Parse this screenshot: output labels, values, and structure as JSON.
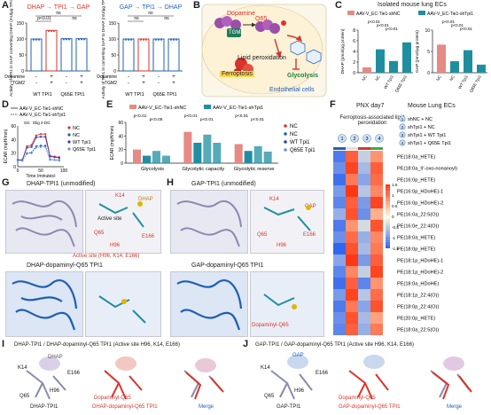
{
  "panels": {
    "A": {
      "letter": "A",
      "chart_data": [
        {
          "type": "bar",
          "title": "DHAP → TPI1 → GAP",
          "ylabel": "Activity of TPI1 in GAP converting DHAP (mU/µg TPI1)",
          "categories": [
            "WT TPI1",
            "WT TPI1 + Dopamine + TGM2",
            "Q65E TPI1",
            "Q65E TPI1 + Dopamine + TGM2"
          ],
          "values": [
            100,
            127,
            101,
            101
          ],
          "ylim": [
            0,
            150
          ],
          "yticks": [
            0,
            50,
            100,
            150
          ],
          "annotations": [
            "p<0.01",
            "ns",
            "ns"
          ],
          "row_labels": [
            "Dopamine",
            "TGM2"
          ],
          "signs": [
            [
              "-",
              "+",
              "-",
              "+"
            ],
            [
              "-",
              "+",
              "-",
              "+"
            ]
          ],
          "group_labels": [
            "WT TPI1",
            "Q65E TPI1"
          ]
        },
        {
          "type": "bar",
          "title": "GAP → TPI1 → DHAP",
          "ylabel": "Activity of TPI1 in converting GAP to DHAP (mU/µg TPI1)",
          "categories": [
            "WT TPI1",
            "WT TPI1 + Dopamine + TGM2",
            "Q65E TPI1",
            "Q65E TPI1 + Dopamine + TGM2"
          ],
          "values": [
            100,
            100,
            100,
            100
          ],
          "ylim": [
            0,
            150
          ],
          "yticks": [
            0,
            50,
            100,
            150
          ],
          "annotations": [
            "ns",
            "ns",
            "ns"
          ],
          "row_labels": [
            "Dopamine",
            "TGM2"
          ],
          "signs": [
            [
              "-",
              "+",
              "-",
              "+"
            ],
            [
              "-",
              "+",
              "-",
              "+"
            ]
          ],
          "group_labels": [
            "WT TPI1",
            "Q65E TPI1"
          ]
        }
      ]
    },
    "B": {
      "letter": "B",
      "labels": [
        "Dopamine",
        "Q65",
        "TGM2",
        "Lipid peroxidation",
        "Ferroptosis",
        "Glycolysis",
        "Endothelial cells"
      ]
    },
    "C": {
      "letter": "C",
      "title": "Isolated mouse lung ECs",
      "legend": [
        "AAV-V_EC-Tie1-shNC",
        "AAV-V_EC-Tie1-shTpi1"
      ],
      "chart_data": [
        {
          "type": "bar",
          "ylabel": "DHAP (pmol/µg protein)",
          "categories": [
            "NC",
            "NC",
            "WT Tpi1",
            "Q65E Tpi1"
          ],
          "values": [
            1.0,
            4.4,
            2.2,
            5.7
          ],
          "ylim": [
            0,
            8
          ],
          "yticks": [
            0,
            2,
            4,
            6,
            8
          ],
          "annotations": [
            "p<0.01",
            "p<0.01",
            "p<0.01"
          ]
        },
        {
          "type": "bar",
          "ylabel": "GAP (pmol/µg protein)",
          "categories": [
            "NC",
            "NC",
            "WT Tpi1",
            "Q65E Tpi1"
          ],
          "values": [
            6.6,
            2.7,
            5.3,
            1.9
          ],
          "ylim": [
            0,
            10
          ],
          "yticks": [
            0,
            5,
            10
          ],
          "annotations": [
            "p<0.01",
            "p<0.01",
            "p<0.01"
          ]
        }
      ]
    },
    "D": {
      "letter": "D",
      "legend": [
        "AAV-V_EC-Tie1-shNC",
        "AAV-V_EC-Tie1-shTpi1",
        "NC",
        "NC",
        "WT Tpi1",
        "Q65E Tpi1"
      ],
      "chart_data": {
        "type": "line",
        "xlabel": "Time (minutes)",
        "ylabel": "ECAR (mpH/min)",
        "ylim": [
          0,
          60
        ],
        "yticks": [
          0,
          20,
          40,
          60
        ],
        "xlim": [
          0,
          100
        ],
        "xticks": [
          0,
          50,
          100
        ],
        "annotations": [
          "Glc",
          "Olig",
          "2-DG"
        ],
        "x": [
          0,
          10,
          20,
          30,
          40,
          50,
          60,
          70,
          80,
          90
        ],
        "series": [
          {
            "name": "NC",
            "values": [
              10,
              10,
              30,
              32,
              46,
              48,
              48,
              16,
              15,
              14
            ]
          },
          {
            "name": "NC",
            "values": [
              9,
              9,
              20,
              21,
              30,
              31,
              31,
              11,
              10,
              10
            ]
          },
          {
            "name": "WT Tpi1",
            "values": [
              10,
              10,
              28,
              29,
              43,
              44,
              44,
              15,
              14,
              13
            ]
          },
          {
            "name": "Q65E Tpi1",
            "values": [
              9,
              9,
              19,
              20,
              28,
              29,
              29,
              10,
              10,
              9
            ]
          }
        ]
      }
    },
    "E": {
      "letter": "E",
      "legend": [
        "AAV-V_EC-Tie1-shNC",
        "AAV-V_EC-Tie1-shTpi1",
        "NC",
        "NC",
        "WT Tpi1",
        "Q65E Tpi1"
      ],
      "chart_data": {
        "type": "bar",
        "ylabel": "ECAR (mpH/min)",
        "categories": [
          "Glycolysis",
          "Glycolytic capacity",
          "Glycolytic reserve"
        ],
        "ylim": [
          0,
          60
        ],
        "yticks": [
          0,
          20,
          40,
          60
        ],
        "series": [
          {
            "name": "NC",
            "values": [
              20,
              46,
              28
            ]
          },
          {
            "name": "NC",
            "values": [
              11,
              30,
              18
            ]
          },
          {
            "name": "WT Tpi1",
            "values": [
              18,
              42,
              25
            ]
          },
          {
            "name": "Q65E Tpi1",
            "values": [
              11,
              30,
              17
            ]
          }
        ],
        "annotations": [
          "p<0.01",
          "p<0.05",
          "p<0.01",
          "p<0.01",
          "p<0.01",
          "p<0.01"
        ]
      }
    },
    "F": {
      "letter": "F",
      "title": "PNX day7",
      "subtitle": "Mouse Lung ECs",
      "caption": "Ferroptosis-associated lipid peroxidation",
      "group_numbers": [
        "1",
        "2",
        "3",
        "4"
      ],
      "legend": [
        "shNC + NC",
        "shTpi1 + NC",
        "shTpi1 + WT Tpi1",
        "shTpi1 + Q65E Tpi1"
      ],
      "scale_ticks": [
        "1.5",
        "1",
        "0.5",
        "0",
        "-0.5",
        "-1",
        "-1.5"
      ],
      "rows": [
        "PE(18:0a_HETE)",
        "PE(18:0a_9'-oxo-nonanoyl)",
        "PE(16:0p_HETE)",
        "PE(16:0p_HDoHE)-1",
        "PE(16:0p_HDoHE)-2",
        "PE(16:0a_22:5(O))",
        "PE(16:0e_22:4(O))",
        "PE(18:0a_HETE)",
        "PE(18:0p_HETE)",
        "PE(18:1p_HDoHE)-1",
        "PE(18:1p_HDoHE)-2",
        "PE(18:0a_HDoHE)",
        "PE(18:1p_22:4(O))",
        "PE(18:0p_22:4(O))",
        "PE(20:0p_HETE)",
        "PE(18:0a_22:5(O))"
      ]
    },
    "G": {
      "letter": "G",
      "top_title": "DHAP-TPI1 (unmodified)",
      "bottom_title": "DHAP-dopaminyl-Q65 TPI1",
      "active_site_label": "Active site",
      "caption": "Active site (H96, K14, E166)",
      "residues": [
        "K14",
        "DHAP",
        "Q65",
        "H96",
        "E166"
      ]
    },
    "H": {
      "letter": "H",
      "top_title": "GAP-TPI1 (unmodified)",
      "bottom_title": "GAP-dopaminyl-Q65 TPI1",
      "residues": [
        "K14",
        "GAP",
        "Q65",
        "H96",
        "E166",
        "Dopaminyl-Q65"
      ]
    },
    "I": {
      "letter": "I",
      "title": "DHAP-TPI1 / DHAP-dopaminyl-Q65 TPI1 (Active site H96, K14, E166)",
      "captions": [
        "DHAP-TPI1",
        "DHAP-dopaminyl-Q65 TPI1",
        "Merge"
      ],
      "residues": [
        "K14",
        "DHAP",
        "E166",
        "Q65",
        "H96",
        "Dopaminyl-Q65"
      ]
    },
    "J": {
      "letter": "J",
      "title": "GAP-TPI1 / GAP-dopaminyl-Q65 TPI1 (Active site H96, K14, E166)",
      "captions": [
        "GAP-TPI1",
        "GAP-dopaminyl-Q65 TPI1",
        "Merge"
      ],
      "residues": [
        "K14",
        "GAP",
        "E166",
        "Q65",
        "H96",
        "Dopaminyl-Q65"
      ]
    }
  },
  "colors": {
    "red": "#d9342b",
    "blue": "#1f5fb3",
    "teal": "#1f8fa0",
    "pink": "#e58a84",
    "heat_high": "#d7191c",
    "heat_low": "#2b5fb0"
  }
}
